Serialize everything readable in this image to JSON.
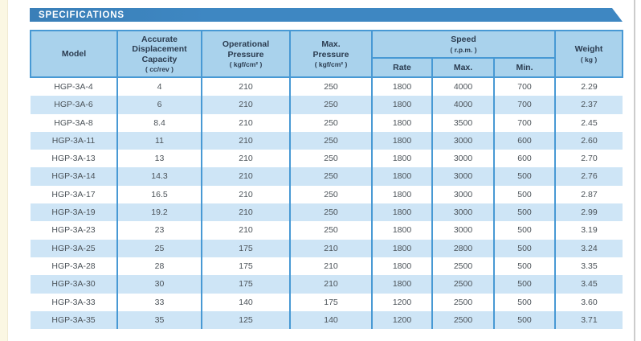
{
  "banner": {
    "title": "SPECIFICATIONS"
  },
  "table": {
    "header": {
      "model": {
        "label": "Model",
        "unit": ""
      },
      "capacity": {
        "label": "Accurate\nDisplacement\nCapacity",
        "unit": "( cc/rev )"
      },
      "op_pressure": {
        "label": "Operational\nPressure",
        "unit": "( kgf/cm² )"
      },
      "max_pressure": {
        "label": "Max.\nPressure",
        "unit": "( kgf/cm² )"
      },
      "speed": {
        "label": "Speed",
        "unit": "( r.p.m. )"
      },
      "speed_sub": {
        "rate": "Rate",
        "max": "Max.",
        "min": "Min."
      },
      "weight": {
        "label": "Weight",
        "unit": "( kg )"
      }
    },
    "column_keys": [
      "model",
      "capacity",
      "op-pressure",
      "max-pressure",
      "speed-rate",
      "speed-max",
      "speed-min",
      "weight"
    ],
    "rows": [
      [
        "HGP-3A-4",
        "4",
        "210",
        "250",
        "1800",
        "4000",
        "700",
        "2.29"
      ],
      [
        "HGP-3A-6",
        "6",
        "210",
        "250",
        "1800",
        "4000",
        "700",
        "2.37"
      ],
      [
        "HGP-3A-8",
        "8.4",
        "210",
        "250",
        "1800",
        "3500",
        "700",
        "2.45"
      ],
      [
        "HGP-3A-11",
        "11",
        "210",
        "250",
        "1800",
        "3000",
        "600",
        "2.60"
      ],
      [
        "HGP-3A-13",
        "13",
        "210",
        "250",
        "1800",
        "3000",
        "600",
        "2.70"
      ],
      [
        "HGP-3A-14",
        "14.3",
        "210",
        "250",
        "1800",
        "3000",
        "500",
        "2.76"
      ],
      [
        "HGP-3A-17",
        "16.5",
        "210",
        "250",
        "1800",
        "3000",
        "500",
        "2.87"
      ],
      [
        "HGP-3A-19",
        "19.2",
        "210",
        "250",
        "1800",
        "3000",
        "500",
        "2.99"
      ],
      [
        "HGP-3A-23",
        "23",
        "210",
        "250",
        "1800",
        "3000",
        "500",
        "3.19"
      ],
      [
        "HGP-3A-25",
        "25",
        "175",
        "210",
        "1800",
        "2800",
        "500",
        "3.24"
      ],
      [
        "HGP-3A-28",
        "28",
        "175",
        "210",
        "1800",
        "2500",
        "500",
        "3.35"
      ],
      [
        "HGP-3A-30",
        "30",
        "175",
        "210",
        "1800",
        "2500",
        "500",
        "3.45"
      ],
      [
        "HGP-3A-33",
        "33",
        "140",
        "175",
        "1200",
        "2500",
        "500",
        "3.60"
      ],
      [
        "HGP-3A-35",
        "35",
        "125",
        "140",
        "1200",
        "2500",
        "500",
        "3.71"
      ]
    ],
    "colors": {
      "banner_blue": "#3e87c2",
      "header_bg": "#a9d2ec",
      "border_blue": "#4899d4",
      "stripe_blue": "#cee5f6",
      "header_text": "#2b3c50",
      "data_text": "#4b5258",
      "page_margin_cream": "#fbf7e3"
    }
  }
}
